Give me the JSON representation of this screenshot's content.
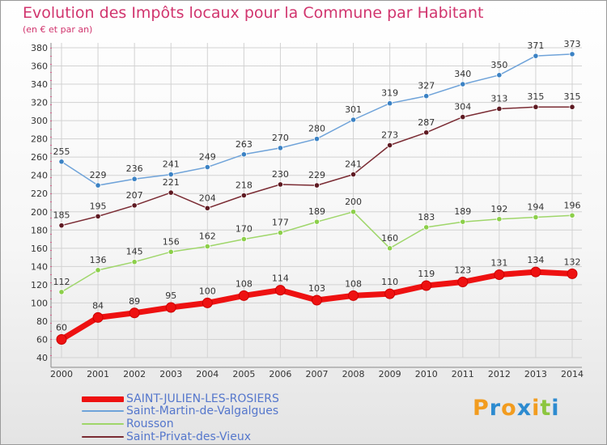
{
  "title": "Evolution des Impôts locaux pour la Commune par Habitant",
  "subtitle": "(en € et par an)",
  "logo": {
    "letters": [
      "P",
      "r",
      "o",
      "x",
      "i",
      "t",
      "i"
    ],
    "colors": [
      "#f29c1f",
      "#2d8bd0",
      "#f29c1f",
      "#2d8bd0",
      "#f29c1f",
      "#8cc63f",
      "#2d8bd0"
    ]
  },
  "chart_data": {
    "type": "line",
    "title": "Evolution des Impôts locaux pour la Commune par Habitant",
    "ylabel": "(en € et par an)",
    "xlabel": "",
    "x": [
      "2000",
      "2001",
      "2002",
      "2003",
      "2004",
      "2005",
      "2006",
      "2007",
      "2008",
      "2009",
      "2010",
      "2011",
      "2012",
      "2013",
      "2014"
    ],
    "ylim": [
      40,
      380
    ],
    "yticks": [
      40,
      60,
      80,
      100,
      120,
      140,
      160,
      180,
      200,
      220,
      240,
      260,
      280,
      300,
      320,
      340,
      360,
      380
    ],
    "grid": true,
    "legend_position": "bottom-left",
    "series": [
      {
        "name": "Saint-Martin-de-Valgalgues",
        "color": "#6fa3d9",
        "marker": "#3b82c4",
        "width": 1.5,
        "values": [
          255,
          229,
          236,
          241,
          249,
          263,
          270,
          280,
          301,
          319,
          327,
          340,
          350,
          371,
          373
        ]
      },
      {
        "name": "Rousson",
        "color": "#9fd66a",
        "marker": "#8ccf4a",
        "width": 1.5,
        "values": [
          112,
          136,
          145,
          156,
          162,
          170,
          177,
          189,
          200,
          160,
          183,
          189,
          192,
          194,
          196
        ]
      },
      {
        "name": "Saint-Privat-des-Vieux",
        "color": "#7a2b33",
        "marker": "#5e1a22",
        "width": 1.5,
        "values": [
          185,
          195,
          207,
          221,
          204,
          218,
          230,
          229,
          241,
          273,
          287,
          304,
          313,
          315,
          315
        ]
      },
      {
        "name": "SAINT-JULIEN-LES-ROSIERS",
        "color": "#ee1111",
        "marker": "#ee1111",
        "width": 7,
        "values": [
          60,
          84,
          89,
          95,
          100,
          108,
          114,
          103,
          108,
          110,
          119,
          123,
          131,
          134,
          132
        ]
      }
    ]
  },
  "legend": [
    {
      "label": "SAINT-JULIEN-LES-ROSIERS",
      "color": "#ee1111",
      "thickness": 7
    },
    {
      "label": "Saint-Martin-de-Valgalgues",
      "color": "#6fa3d9",
      "thickness": 2
    },
    {
      "label": "Rousson",
      "color": "#9fd66a",
      "thickness": 2
    },
    {
      "label": "Saint-Privat-des-Vieux",
      "color": "#7a2b33",
      "thickness": 2
    }
  ]
}
